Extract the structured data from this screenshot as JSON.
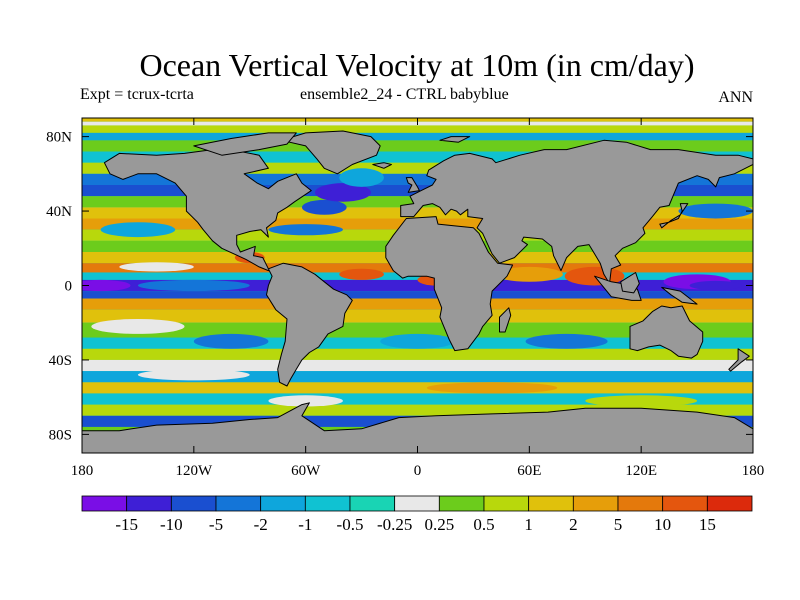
{
  "chart_data": {
    "type": "heatmap",
    "title": "Ocean Vertical Velocity at 10m (in cm/day)",
    "subtitle_left": "Expt = tcrux-tcrta",
    "subtitle_center": "ensemble2_24 - CTRL babyblue",
    "subtitle_right": "ANN",
    "x_ticks": [
      {
        "value": -180,
        "label": "180"
      },
      {
        "value": -120,
        "label": "120W"
      },
      {
        "value": -60,
        "label": "60W"
      },
      {
        "value": 0,
        "label": "0"
      },
      {
        "value": 60,
        "label": "60E"
      },
      {
        "value": 120,
        "label": "120E"
      },
      {
        "value": 180,
        "label": "180"
      }
    ],
    "y_ticks": [
      {
        "value": 80,
        "label": "80N"
      },
      {
        "value": 40,
        "label": "40N"
      },
      {
        "value": 0,
        "label": "0"
      },
      {
        "value": -40,
        "label": "40S"
      },
      {
        "value": -80,
        "label": "80S"
      }
    ],
    "xlim": [
      -180,
      180
    ],
    "ylim": [
      -90,
      90
    ],
    "land_color": "#999999",
    "colorbar": {
      "labels": [
        "-15",
        "-10",
        "-5",
        "-2",
        "-1",
        "-0.5",
        "-0.25",
        "0.25",
        "0.5",
        "1",
        "2",
        "5",
        "10",
        "15"
      ],
      "colors": [
        "#7a0ee6",
        "#3e1fd6",
        "#1a4fd0",
        "#1475d8",
        "#0ea6dc",
        "#10c2d2",
        "#19d4b4",
        "#e8e8e8",
        "#6ccc1c",
        "#b8d80c",
        "#e0c10c",
        "#e69e0a",
        "#e4790c",
        "#e4560e",
        "#dc2a0c"
      ]
    }
  }
}
